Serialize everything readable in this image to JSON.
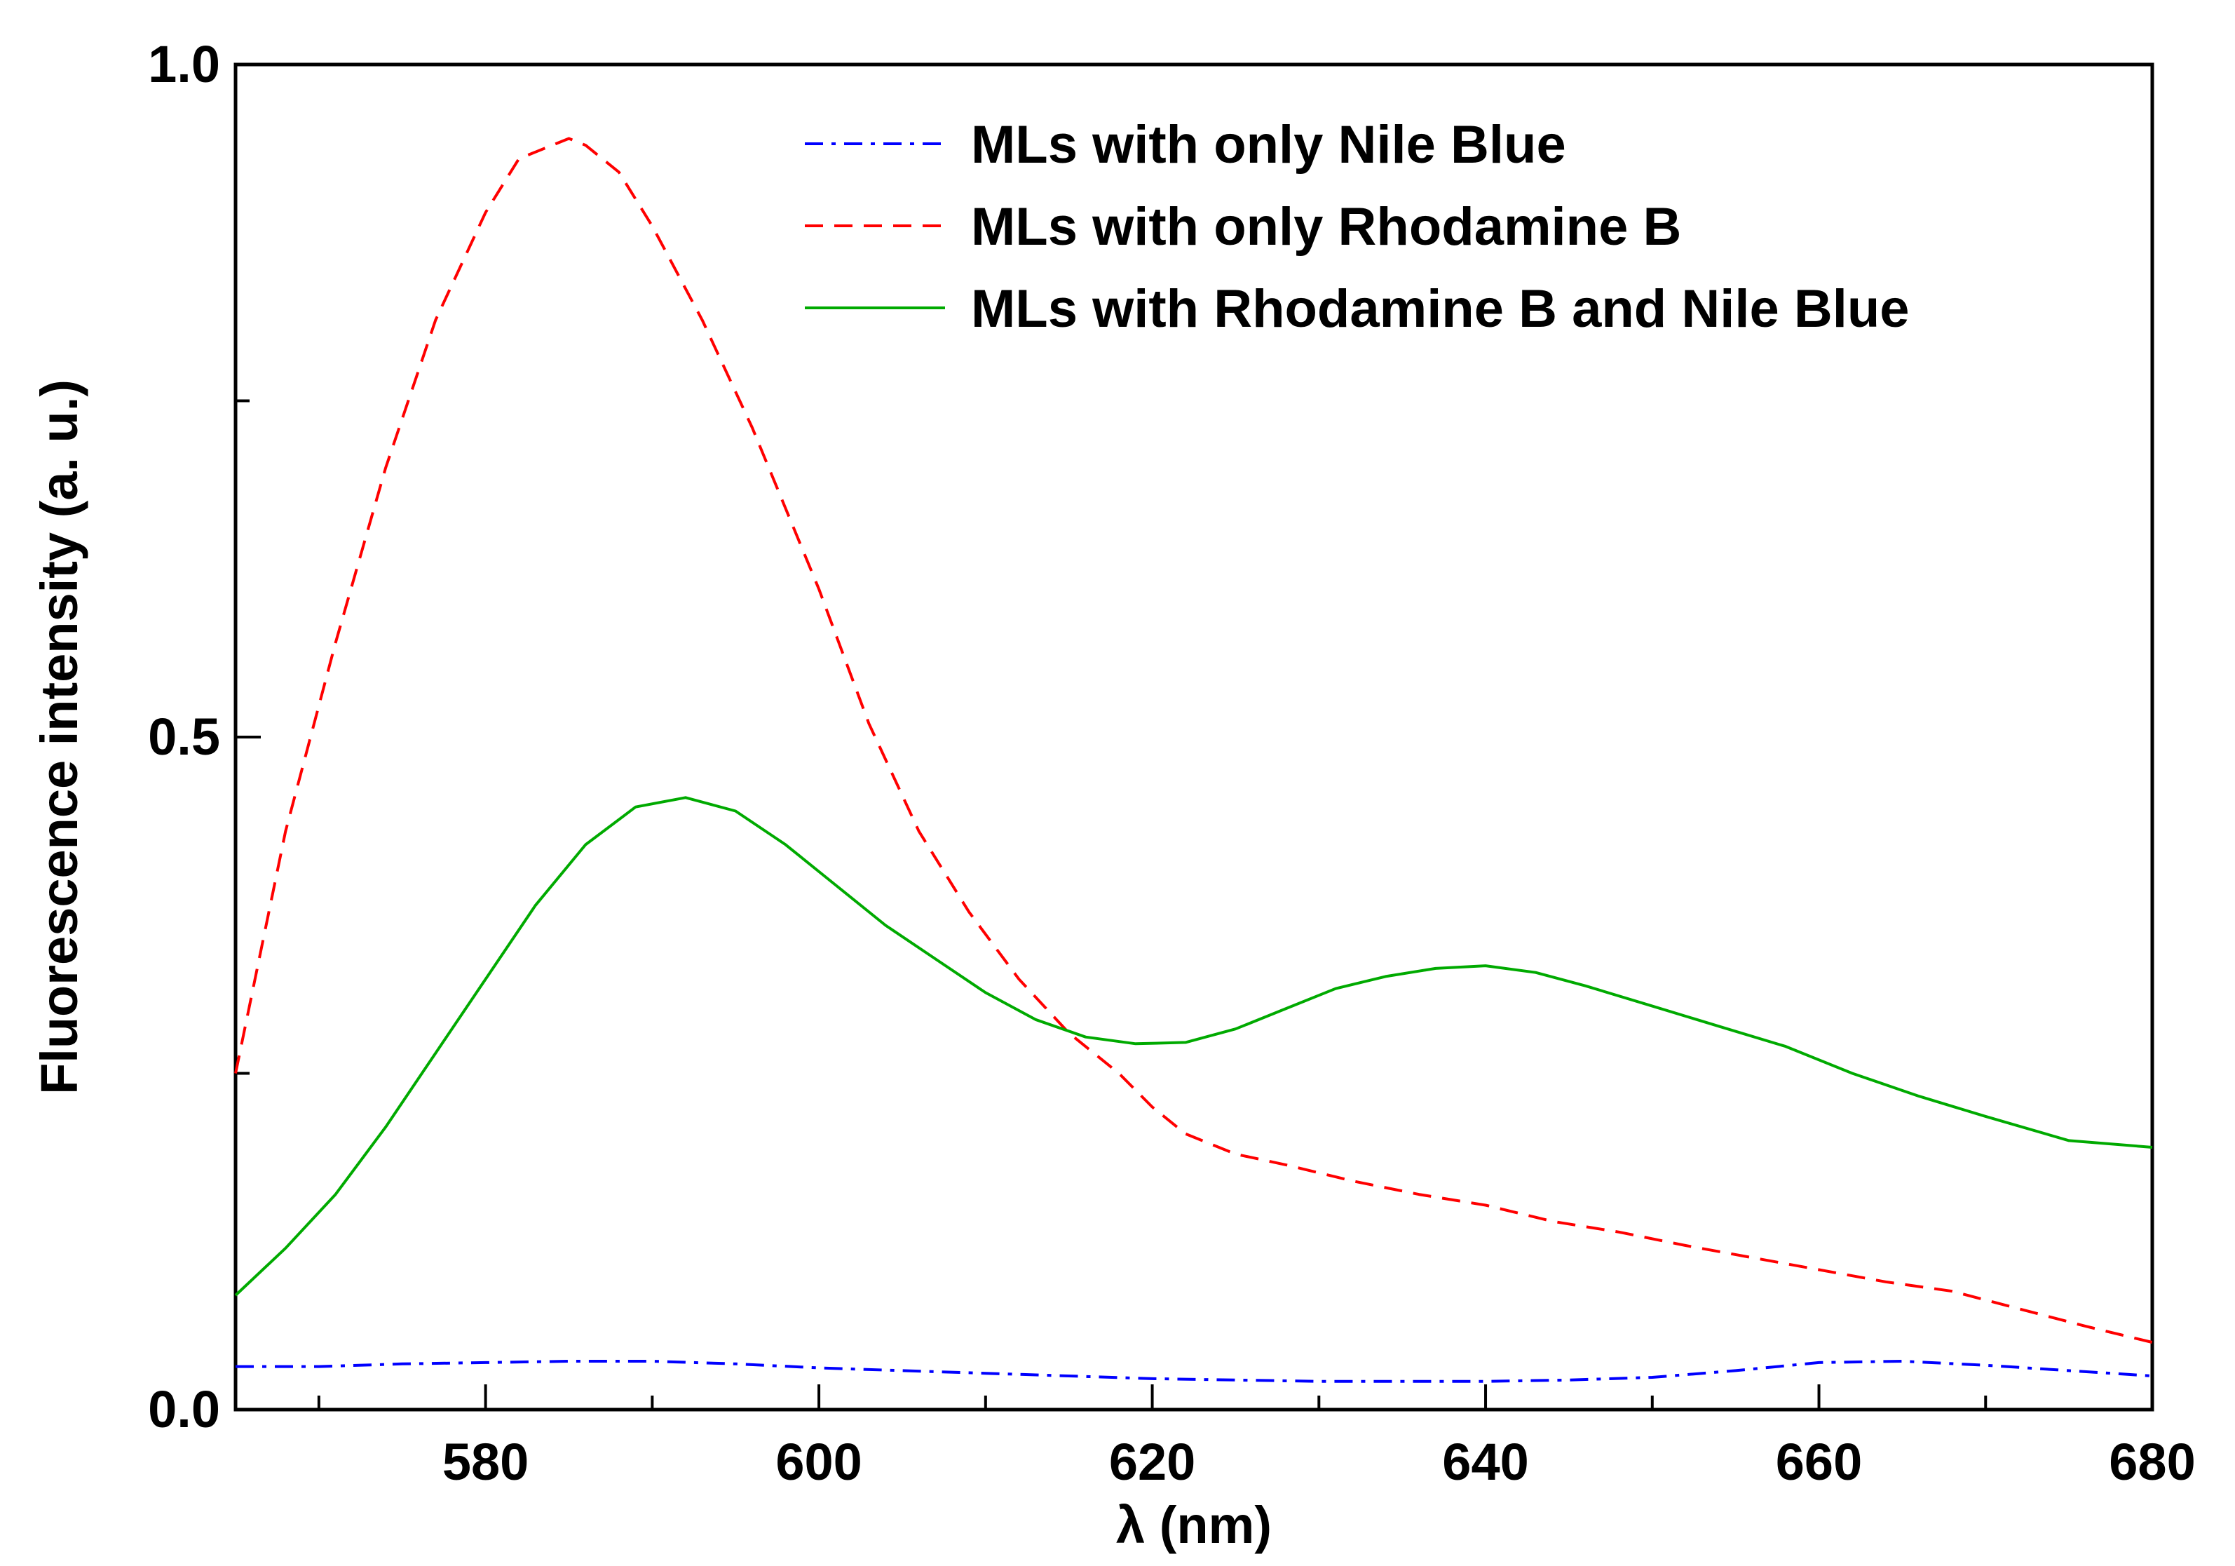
{
  "chart_data": {
    "type": "line",
    "title": "",
    "xlabel": "λ (nm)",
    "ylabel": "Fluorescence intensity (a. u.)",
    "xlim": [
      565,
      680
    ],
    "ylim": [
      0.0,
      1.0
    ],
    "x_ticks": [
      580,
      600,
      620,
      640,
      660,
      680
    ],
    "x_tick_labels": [
      "580",
      "600",
      "620",
      "640",
      "660",
      "680"
    ],
    "x_minor_ticks": [
      570,
      590,
      610,
      630,
      650,
      670
    ],
    "y_ticks": [
      0.0,
      0.5,
      1.0
    ],
    "y_tick_labels": [
      "0.0",
      "0.5",
      "1.0"
    ],
    "y_minor_ticks": [
      0.25,
      0.75
    ],
    "grid": false,
    "legend_position": "top-right",
    "series": [
      {
        "name": "MLs with only Nile Blue",
        "color": "#0000ff",
        "line_style": "dash-dot",
        "x": [
          565,
          570,
          575,
          580,
          585,
          590,
          595,
          600,
          605,
          610,
          615,
          620,
          625,
          630,
          635,
          640,
          645,
          650,
          655,
          660,
          665,
          670,
          675,
          680
        ],
        "y": [
          0.032,
          0.032,
          0.034,
          0.035,
          0.036,
          0.036,
          0.034,
          0.031,
          0.029,
          0.027,
          0.025,
          0.023,
          0.022,
          0.021,
          0.021,
          0.021,
          0.022,
          0.024,
          0.029,
          0.035,
          0.036,
          0.033,
          0.029,
          0.025
        ]
      },
      {
        "name": "MLs with only Rhodamine B",
        "color": "#ff0000",
        "line_style": "dashed",
        "x": [
          565,
          568,
          571,
          574,
          577,
          580,
          582,
          584,
          585,
          586,
          588,
          590,
          593,
          596,
          600,
          603,
          606,
          609,
          612,
          615,
          618,
          620,
          622,
          625,
          628,
          632,
          636,
          640,
          644,
          648,
          652,
          656,
          660,
          664,
          668,
          672,
          676,
          680
        ],
        "y": [
          0.25,
          0.43,
          0.57,
          0.7,
          0.81,
          0.89,
          0.93,
          0.94,
          0.945,
          0.94,
          0.92,
          0.88,
          0.81,
          0.73,
          0.61,
          0.51,
          0.43,
          0.37,
          0.32,
          0.28,
          0.25,
          0.225,
          0.205,
          0.19,
          0.182,
          0.17,
          0.16,
          0.152,
          0.14,
          0.132,
          0.122,
          0.113,
          0.104,
          0.095,
          0.088,
          0.075,
          0.062,
          0.05
        ]
      },
      {
        "name": "MLs with Rhodamine B and Nile Blue",
        "color": "#00aa00",
        "line_style": "solid",
        "x": [
          565,
          568,
          571,
          574,
          577,
          580,
          583,
          586,
          589,
          592,
          595,
          598,
          601,
          604,
          607,
          610,
          613,
          616,
          619,
          622,
          625,
          628,
          631,
          634,
          637,
          640,
          643,
          646,
          650,
          654,
          658,
          662,
          666,
          670,
          675,
          680
        ],
        "y": [
          0.085,
          0.12,
          0.16,
          0.21,
          0.265,
          0.32,
          0.375,
          0.42,
          0.448,
          0.455,
          0.445,
          0.42,
          0.39,
          0.36,
          0.335,
          0.31,
          0.29,
          0.277,
          0.272,
          0.273,
          0.283,
          0.298,
          0.313,
          0.322,
          0.328,
          0.33,
          0.325,
          0.315,
          0.3,
          0.285,
          0.27,
          0.25,
          0.233,
          0.218,
          0.2,
          0.195
        ]
      }
    ]
  }
}
